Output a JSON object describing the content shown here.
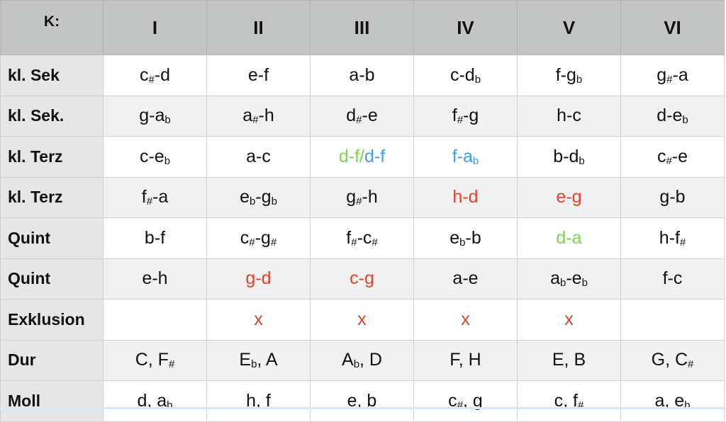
{
  "colors": {
    "red": "#e2412b",
    "green": "#7ed24f",
    "blue": "#3f9cf0"
  },
  "header": [
    "K:",
    "I",
    "II",
    "III",
    "IV",
    "V",
    "VI"
  ],
  "rows": [
    {
      "label": "kl. Sek",
      "cells": [
        [
          {
            "t": "c"
          },
          {
            "t": "#",
            "acc": true
          },
          {
            "t": "-d"
          }
        ],
        [
          {
            "t": "e-f"
          }
        ],
        [
          {
            "t": "a-b"
          }
        ],
        [
          {
            "t": "c-d"
          },
          {
            "t": "b",
            "acc": true
          }
        ],
        [
          {
            "t": "f-g"
          },
          {
            "t": "b",
            "acc": true
          }
        ],
        [
          {
            "t": "g"
          },
          {
            "t": "#",
            "acc": true
          },
          {
            "t": "-a"
          }
        ]
      ]
    },
    {
      "label": "kl. Sek.",
      "cells": [
        [
          {
            "t": "g-a"
          },
          {
            "t": "b",
            "acc": true
          }
        ],
        [
          {
            "t": "a"
          },
          {
            "t": "#",
            "acc": true
          },
          {
            "t": "-h"
          }
        ],
        [
          {
            "t": "d"
          },
          {
            "t": "#",
            "acc": true
          },
          {
            "t": "-e"
          }
        ],
        [
          {
            "t": "f"
          },
          {
            "t": "#",
            "acc": true
          },
          {
            "t": "-g"
          }
        ],
        [
          {
            "t": "h-c"
          }
        ],
        [
          {
            "t": "d-e"
          },
          {
            "t": "b",
            "acc": true
          }
        ]
      ]
    },
    {
      "label": "kl. Terz",
      "cells": [
        [
          {
            "t": "c-e"
          },
          {
            "t": "b",
            "acc": true
          }
        ],
        [
          {
            "t": "a-c"
          }
        ],
        [
          {
            "t": "d-f/",
            "c": "green"
          },
          {
            "t": "d-f",
            "c": "blue"
          }
        ],
        [
          {
            "t": "f-a",
            "c": "blue"
          },
          {
            "t": "b",
            "acc": true,
            "c": "blue"
          }
        ],
        [
          {
            "t": "b-d"
          },
          {
            "t": "b",
            "acc": true
          }
        ],
        [
          {
            "t": "c"
          },
          {
            "t": "#",
            "acc": true
          },
          {
            "t": "-e"
          }
        ]
      ]
    },
    {
      "label": "kl. Terz",
      "cells": [
        [
          {
            "t": "f"
          },
          {
            "t": "#",
            "acc": true
          },
          {
            "t": "-a"
          }
        ],
        [
          {
            "t": "e"
          },
          {
            "t": "b",
            "acc": true
          },
          {
            "t": "-g"
          },
          {
            "t": "b",
            "acc": true
          }
        ],
        [
          {
            "t": "g"
          },
          {
            "t": "#",
            "acc": true
          },
          {
            "t": "-h"
          }
        ],
        [
          {
            "t": "h-d",
            "c": "red"
          }
        ],
        [
          {
            "t": "e-g",
            "c": "red"
          }
        ],
        [
          {
            "t": "g-b"
          }
        ]
      ]
    },
    {
      "label": "Quint",
      "cells": [
        [
          {
            "t": "b-f"
          }
        ],
        [
          {
            "t": "c"
          },
          {
            "t": "#",
            "acc": true
          },
          {
            "t": "-g"
          },
          {
            "t": "#",
            "acc": true
          }
        ],
        [
          {
            "t": "f"
          },
          {
            "t": "#",
            "acc": true
          },
          {
            "t": "-c"
          },
          {
            "t": "#",
            "acc": true
          }
        ],
        [
          {
            "t": "e"
          },
          {
            "t": "b",
            "acc": true
          },
          {
            "t": "-b"
          }
        ],
        [
          {
            "t": "d-a",
            "c": "green"
          }
        ],
        [
          {
            "t": "h-f"
          },
          {
            "t": "#",
            "acc": true
          }
        ]
      ]
    },
    {
      "label": "Quint",
      "cells": [
        [
          {
            "t": "e-h"
          }
        ],
        [
          {
            "t": "g-d",
            "c": "red"
          }
        ],
        [
          {
            "t": "c-g",
            "c": "red"
          }
        ],
        [
          {
            "t": "a-e"
          }
        ],
        [
          {
            "t": "a"
          },
          {
            "t": "b",
            "acc": true
          },
          {
            "t": "-e"
          },
          {
            "t": "b",
            "acc": true
          }
        ],
        [
          {
            "t": "f-c"
          }
        ]
      ]
    },
    {
      "label": "Exklusion",
      "cells": [
        [],
        [
          {
            "t": "x",
            "c": "red"
          }
        ],
        [
          {
            "t": "x",
            "c": "red"
          }
        ],
        [
          {
            "t": "x",
            "c": "red"
          }
        ],
        [
          {
            "t": "x",
            "c": "red"
          }
        ],
        []
      ]
    },
    {
      "label": "Dur",
      "cells": [
        [
          {
            "t": "C, F"
          },
          {
            "t": "#",
            "acc": true
          }
        ],
        [
          {
            "t": "E"
          },
          {
            "t": "b",
            "acc": true
          },
          {
            "t": ", A"
          }
        ],
        [
          {
            "t": "A"
          },
          {
            "t": "b",
            "acc": true
          },
          {
            "t": ", D"
          }
        ],
        [
          {
            "t": "F, H"
          }
        ],
        [
          {
            "t": "E, B"
          }
        ],
        [
          {
            "t": "G, C"
          },
          {
            "t": "#",
            "acc": true
          }
        ]
      ]
    },
    {
      "label": "Moll",
      "cells": [
        [
          {
            "t": "d, a"
          },
          {
            "t": "b",
            "acc": true
          }
        ],
        [
          {
            "t": "h, f"
          }
        ],
        [
          {
            "t": "e, b"
          }
        ],
        [
          {
            "t": "c"
          },
          {
            "t": "#",
            "acc": true
          },
          {
            "t": ", g"
          }
        ],
        [
          {
            "t": "c, f"
          },
          {
            "t": "#",
            "acc": true
          }
        ],
        [
          {
            "t": "a, e"
          },
          {
            "t": "b",
            "acc": true
          }
        ]
      ]
    }
  ]
}
